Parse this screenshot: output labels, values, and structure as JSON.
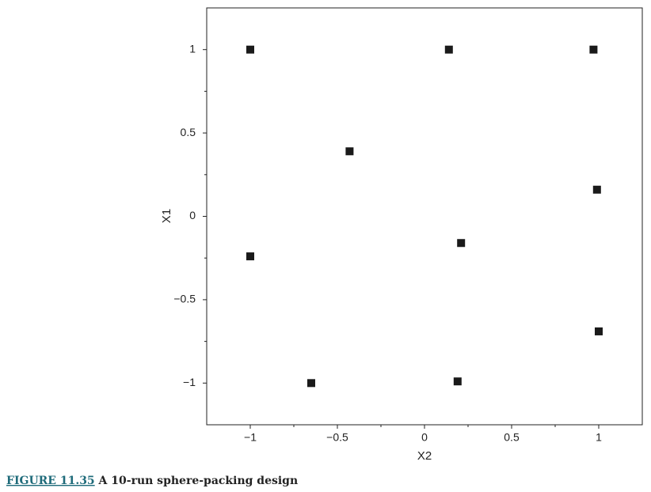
{
  "chart_data": {
    "type": "scatter",
    "xlabel": "X2",
    "ylabel": "X1",
    "x": [
      -1,
      0.14,
      0.97,
      -0.43,
      0.99,
      0.21,
      -1,
      1,
      -0.65,
      0.19
    ],
    "values": [
      1,
      1,
      1,
      0.39,
      0.16,
      -0.16,
      -0.24,
      -0.69,
      -1,
      -0.99
    ],
    "color": "#1a1a1a",
    "xlim": [
      -1.25,
      1.25
    ],
    "ylim": [
      -1.25,
      1.25
    ],
    "xticks": [
      {
        "value": -1,
        "label": "−1"
      },
      {
        "value": -0.5,
        "label": "−0.5"
      },
      0,
      0.5,
      1
    ],
    "yticks": [
      {
        "value": -1,
        "label": "−1"
      },
      {
        "value": -0.5,
        "label": "−0.5"
      },
      0,
      0.5,
      1
    ],
    "minor_ticks": [
      -0.75,
      -0.25,
      0.25,
      0.75
    ],
    "grid": false,
    "figure_label": "FIGURE 11.35",
    "caption": "A 10-run sphere-packing design"
  }
}
